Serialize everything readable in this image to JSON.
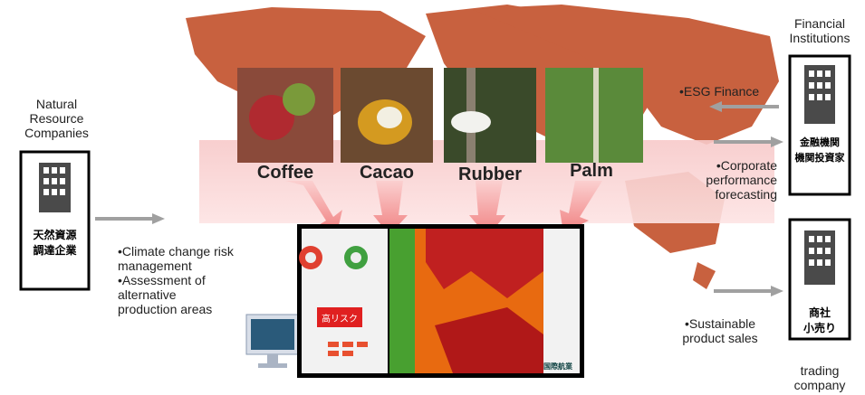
{
  "left": {
    "label": "Natural Resource Companies",
    "building": [
      "天然資源",
      "調達企業"
    ],
    "bullets": [
      "•Climate change risk management",
      "•Assessment of alternative production areas"
    ]
  },
  "commodities": [
    "Coffee",
    "Cacao",
    "Rubber",
    "Palm"
  ],
  "dashboard": {
    "risk_label": "高リスク",
    "logo": "国際航業"
  },
  "financial": {
    "label": "Financial Institutions",
    "building": [
      "金融機関",
      "機関投資家"
    ],
    "bullets": [
      "•ESG Finance",
      "•Corporate performance forecasting"
    ]
  },
  "trading": {
    "label": "trading company",
    "building": [
      "商社",
      "小売り"
    ],
    "bullets": [
      "•Sustainable product sales"
    ]
  }
}
